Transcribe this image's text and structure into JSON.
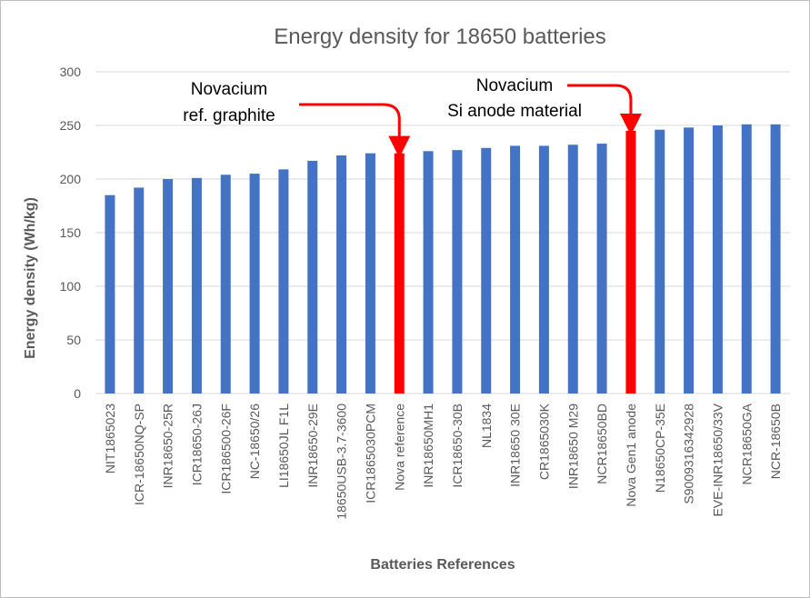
{
  "chart_data": {
    "type": "bar",
    "title": "Energy density for 18650 batteries",
    "xlabel": "Batteries References",
    "ylabel": "Energy density (Wh/kg)",
    "ylim": [
      0,
      300
    ],
    "yticks": [
      0,
      50,
      100,
      150,
      200,
      250,
      300
    ],
    "grid": true,
    "legend": "none",
    "colors": {
      "default": "#4472C4",
      "highlight": "#FF0000",
      "grid": "#d9d9d9",
      "arrow": "#FF0000"
    },
    "categories": [
      "NIT1865023",
      "ICR-18650NQ-SP",
      "INR18650-25R",
      "ICR18650-26J",
      "ICR186500-26F",
      "NC-18650/26",
      "LI18650JL F1L",
      "INR18650-29E",
      "18650USB-3.7-3600",
      "ICR1865030PCM",
      "Nova reference",
      "INR18650MH1",
      "ICR18650-30B",
      "NL1834",
      "INR18650 30E",
      "CR1865030K",
      "INR18650 M29",
      "NCR18650BD",
      "Nova Gen1 anode",
      "N18650CP-35E",
      "S9009316342928",
      "EVE-INR18650/33V",
      "NCR18650GA",
      "NCR-18650B"
    ],
    "values": [
      185,
      192,
      200,
      201,
      204,
      205,
      209,
      217,
      222,
      224,
      224,
      226,
      227,
      229,
      231,
      231,
      232,
      233,
      245,
      246,
      248,
      250,
      251,
      251
    ],
    "highlighted": [
      "Nova reference",
      "Nova Gen1 anode"
    ],
    "annotations": [
      {
        "lines": [
          "Novacium",
          "ref. graphite"
        ],
        "target": "Nova reference"
      },
      {
        "lines": [
          "Novacium",
          "Si anode material"
        ],
        "target": "Nova Gen1 anode"
      }
    ]
  }
}
